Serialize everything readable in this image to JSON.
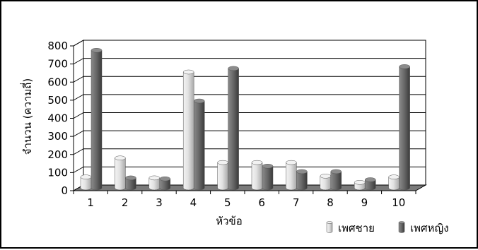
{
  "chart_data": {
    "type": "bar",
    "title": "",
    "xlabel": "หัวข้อ",
    "ylabel": "จำนวน (ความถี่)",
    "ylim": [
      0,
      800
    ],
    "yticks": [
      0,
      100,
      200,
      300,
      400,
      500,
      600,
      700,
      800
    ],
    "categories": [
      "1",
      "2",
      "3",
      "4",
      "5",
      "6",
      "7",
      "8",
      "9",
      "10"
    ],
    "series": [
      {
        "name": "เพศชาย",
        "color": "#d9d9d9",
        "values": [
          60,
          165,
          55,
          640,
          140,
          140,
          140,
          65,
          30,
          60
        ]
      },
      {
        "name": "เพศหญิง",
        "color": "#6e6e6e",
        "values": [
          760,
          55,
          50,
          480,
          660,
          120,
          90,
          90,
          45,
          670
        ]
      }
    ],
    "grid": true,
    "legend": "bottom-right",
    "style": "3d-cylinder"
  }
}
